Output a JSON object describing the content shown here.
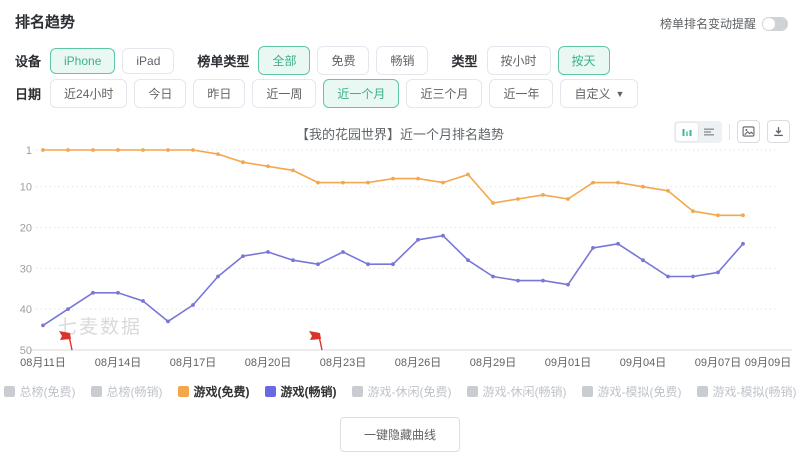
{
  "page": {
    "title": "排名趋势"
  },
  "header": {
    "alert_label": "榜单排名变动提醒",
    "alert_toggle_on": false
  },
  "filters": {
    "device": {
      "label": "设备",
      "options": [
        {
          "text": "iPhone",
          "selected": true
        },
        {
          "text": "iPad",
          "selected": false
        }
      ]
    },
    "board_type": {
      "label": "榜单类型",
      "options": [
        {
          "text": "全部",
          "selected": true
        },
        {
          "text": "免费",
          "selected": false
        },
        {
          "text": "畅销",
          "selected": false
        }
      ]
    },
    "type": {
      "label": "类型",
      "options": [
        {
          "text": "按小时",
          "selected": false
        },
        {
          "text": "按天",
          "selected": true
        }
      ]
    },
    "date": {
      "label": "日期",
      "options": [
        {
          "text": "近24小时",
          "selected": false
        },
        {
          "text": "今日",
          "selected": false
        },
        {
          "text": "昨日",
          "selected": false
        },
        {
          "text": "近一周",
          "selected": false
        },
        {
          "text": "近一个月",
          "selected": true
        },
        {
          "text": "近三个月",
          "selected": false
        },
        {
          "text": "近一年",
          "selected": false
        },
        {
          "text": "自定义",
          "selected": false,
          "dropdown": true
        }
      ]
    }
  },
  "chart_header": {
    "title": "【我的花园世界】近一个月排名趋势"
  },
  "chart_data": {
    "type": "line",
    "title": "【我的花园世界】近一个月排名趋势",
    "x": [
      "08/11",
      "08/12",
      "08/13",
      "08/14",
      "08/15",
      "08/16",
      "08/17",
      "08/18",
      "08/19",
      "08/20",
      "08/21",
      "08/22",
      "08/23",
      "08/24",
      "08/25",
      "08/26",
      "08/27",
      "08/28",
      "08/29",
      "08/30",
      "08/31",
      "09/01",
      "09/02",
      "09/03",
      "09/04",
      "09/05",
      "09/06",
      "09/07",
      "09/08"
    ],
    "x_ticks": [
      {
        "index": 0,
        "label": "08月11日"
      },
      {
        "index": 3,
        "label": "08月14日"
      },
      {
        "index": 6,
        "label": "08月17日"
      },
      {
        "index": 9,
        "label": "08月20日"
      },
      {
        "index": 12,
        "label": "08月23日"
      },
      {
        "index": 15,
        "label": "08月26日"
      },
      {
        "index": 18,
        "label": "08月29日"
      },
      {
        "index": 21,
        "label": "09月01日"
      },
      {
        "index": 24,
        "label": "09月04日"
      },
      {
        "index": 27,
        "label": "09月07日"
      },
      {
        "index": 29,
        "label": "09月09日"
      }
    ],
    "y_axis": {
      "inverted": true,
      "ticks": [
        1,
        10,
        20,
        30,
        40,
        50
      ],
      "range": [
        1,
        50
      ],
      "meaning": "rank"
    },
    "series": [
      {
        "name": "游戏(免费)",
        "color": "#F3A74F",
        "values": [
          1,
          1,
          1,
          1,
          1,
          1,
          1,
          2,
          4,
          5,
          6,
          9,
          9,
          9,
          8,
          8,
          9,
          7,
          14,
          13,
          12,
          13,
          9,
          9,
          10,
          11,
          16,
          17,
          17
        ]
      },
      {
        "name": "游戏(畅销)",
        "color": "#7977D6",
        "values": [
          44,
          40,
          36,
          36,
          38,
          43,
          39,
          32,
          27,
          26,
          28,
          29,
          26,
          29,
          29,
          23,
          22,
          28,
          32,
          33,
          33,
          34,
          25,
          24,
          28,
          32,
          32,
          31,
          24
        ]
      }
    ],
    "flag_marker_indices": [
      1,
      11
    ],
    "flag_color": "#D9342B",
    "watermark": "七麦数据",
    "grid": true,
    "legend_position": "bottom",
    "legend": [
      {
        "label": "总榜(免费)",
        "color": "#c9ccd1",
        "active": false
      },
      {
        "label": "总榜(畅销)",
        "color": "#c9ccd1",
        "active": false
      },
      {
        "label": "游戏(免费)",
        "color": "#F5A64B",
        "active": true
      },
      {
        "label": "游戏(畅销)",
        "color": "#6B68E6",
        "active": true
      },
      {
        "label": "游戏-休闲(免费)",
        "color": "#c9ccd1",
        "active": false
      },
      {
        "label": "游戏-休闲(畅销)",
        "color": "#c9ccd1",
        "active": false
      },
      {
        "label": "游戏-模拟(免费)",
        "color": "#c9ccd1",
        "active": false
      },
      {
        "label": "游戏-模拟(畅销)",
        "color": "#c9ccd1",
        "active": false
      }
    ]
  },
  "footer": {
    "hide_curves_label": "一键隐藏曲线"
  }
}
